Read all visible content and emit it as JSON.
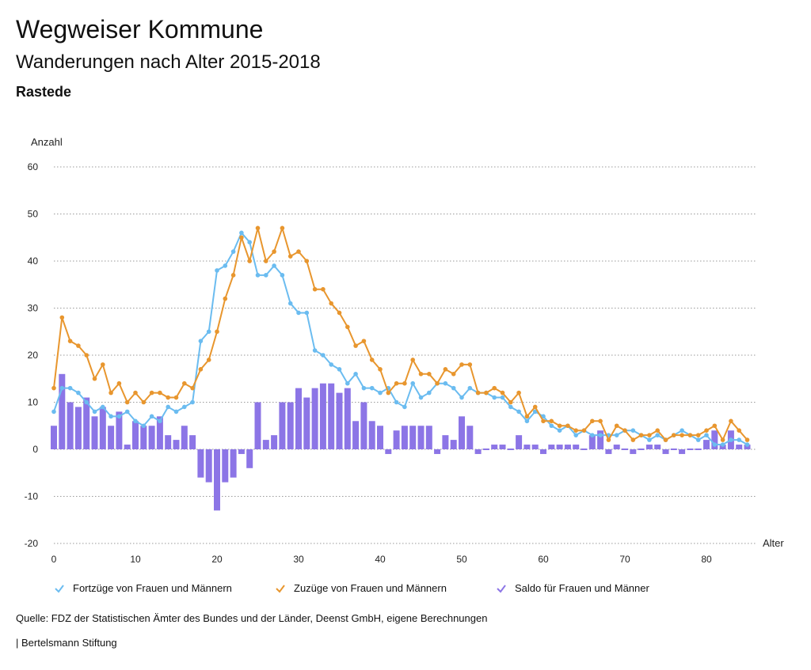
{
  "header": {
    "title": "Wegweiser Kommune",
    "subtitle": "Wanderungen nach Alter 2015-2018",
    "region": "Rastede"
  },
  "chart_data": {
    "type": "bar+line",
    "ylabel": "Anzahl",
    "xlabel": "Alter",
    "ylim": [
      -20,
      60
    ],
    "xlim": [
      0,
      85
    ],
    "y_ticks": [
      -20,
      -10,
      0,
      10,
      20,
      30,
      40,
      50,
      60
    ],
    "x_ticks": [
      0,
      10,
      20,
      30,
      40,
      50,
      60,
      70,
      80
    ],
    "grid": "horizontal dotted",
    "x": [
      0,
      1,
      2,
      3,
      4,
      5,
      6,
      7,
      8,
      9,
      10,
      11,
      12,
      13,
      14,
      15,
      16,
      17,
      18,
      19,
      20,
      21,
      22,
      23,
      24,
      25,
      26,
      27,
      28,
      29,
      30,
      31,
      32,
      33,
      34,
      35,
      36,
      37,
      38,
      39,
      40,
      41,
      42,
      43,
      44,
      45,
      46,
      47,
      48,
      49,
      50,
      51,
      52,
      53,
      54,
      55,
      56,
      57,
      58,
      59,
      60,
      61,
      62,
      63,
      64,
      65,
      66,
      67,
      68,
      69,
      70,
      71,
      72,
      73,
      74,
      75,
      76,
      77,
      78,
      79,
      80,
      81,
      82,
      83,
      84,
      85
    ],
    "series": [
      {
        "name": "Fortzüge von Frauen und Männern",
        "kind": "line",
        "color": "#6bbcf0",
        "values": [
          8,
          13,
          13,
          12,
          10,
          8,
          9,
          7,
          7,
          8,
          6,
          5,
          7,
          6,
          9,
          8,
          9,
          10,
          23,
          25,
          38,
          39,
          42,
          46,
          44,
          37,
          37,
          39,
          37,
          31,
          29,
          29,
          21,
          20,
          18,
          17,
          14,
          16,
          13,
          13,
          12,
          13,
          10,
          9,
          14,
          11,
          12,
          14,
          14,
          13,
          11,
          13,
          12,
          12,
          11,
          11,
          9,
          8,
          6,
          8,
          7,
          5,
          4,
          5,
          3,
          4,
          3,
          3,
          3,
          3,
          4,
          4,
          3,
          2,
          3,
          2,
          3,
          4,
          3,
          2,
          3,
          1,
          1,
          2,
          2,
          1
        ]
      },
      {
        "name": "Zuzüge von Frauen und Männern",
        "kind": "line",
        "color": "#e8962e",
        "values": [
          13,
          28,
          23,
          22,
          20,
          15,
          18,
          12,
          14,
          10,
          12,
          10,
          12,
          12,
          11,
          11,
          14,
          13,
          17,
          19,
          25,
          32,
          37,
          45,
          40,
          47,
          40,
          42,
          47,
          41,
          42,
          40,
          34,
          34,
          31,
          29,
          26,
          22,
          23,
          19,
          17,
          12,
          14,
          14,
          19,
          16,
          16,
          14,
          17,
          16,
          18,
          18,
          12,
          12,
          13,
          12,
          10,
          12,
          7,
          9,
          6,
          6,
          5,
          5,
          4,
          4,
          6,
          6,
          2,
          5,
          4,
          2,
          3,
          3,
          4,
          2,
          3,
          3,
          3,
          3,
          4,
          5,
          2,
          6,
          4,
          2
        ]
      },
      {
        "name": "Saldo für Frauen und Männer",
        "kind": "bar",
        "color": "#8c75e6",
        "values": [
          5,
          16,
          10,
          9,
          11,
          7,
          9,
          5,
          8,
          1,
          6,
          5,
          5,
          7,
          3,
          2,
          5,
          3,
          -6,
          -7,
          -13,
          -7,
          -6,
          -1,
          -4,
          10,
          2,
          3,
          10,
          10,
          13,
          11,
          13,
          14,
          14,
          12,
          13,
          6,
          10,
          6,
          5,
          -1,
          4,
          5,
          5,
          5,
          5,
          -1,
          3,
          2,
          7,
          5,
          -1,
          0,
          1,
          1,
          0,
          3,
          1,
          1,
          -1,
          1,
          1,
          1,
          1,
          0,
          3,
          4,
          -1,
          1,
          0,
          -1,
          0,
          1,
          1,
          -1,
          0,
          -1,
          0,
          0,
          2,
          4,
          1,
          4,
          1,
          1
        ]
      }
    ]
  },
  "footer": {
    "source": "Quelle: FDZ der Statistischen Ämter des Bundes und der Länder, Deenst GmbH, eigene Berechnungen",
    "publisher": "| Bertelsmann Stiftung"
  }
}
